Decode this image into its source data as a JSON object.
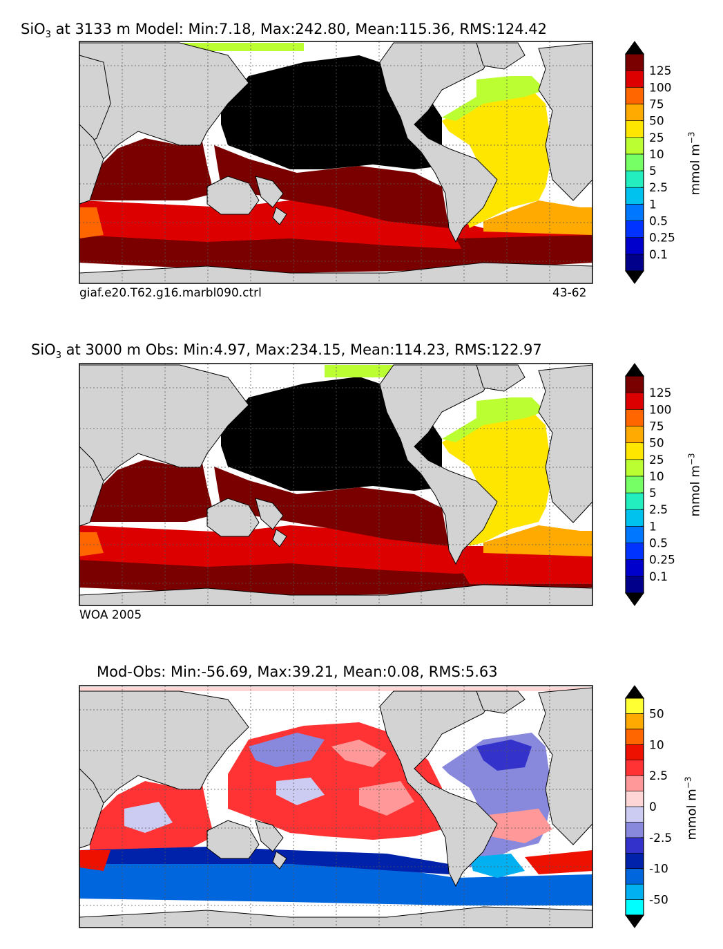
{
  "chart_data": [
    {
      "type": "heatmap",
      "title": {
        "prefix": "SiO",
        "sub": "3",
        "suffix": " at 3133 m Model: Min:7.18, Max:242.80, Mean:115.36, RMS:124.42"
      },
      "footer_left": "giaf.e20.T62.g16.marbl090.ctrl",
      "footer_right": "43-62",
      "colorbar": {
        "unit": "mmol m",
        "unit_sup": "−3",
        "levels": [
          "0.1",
          "0.25",
          "0.5",
          "1",
          "2.5",
          "5",
          "10",
          "25",
          "50",
          "75",
          "100",
          "125"
        ],
        "colors": [
          "#00008b",
          "#0000cd",
          "#0033ff",
          "#0077ff",
          "#00c2ee",
          "#22eec0",
          "#77ff66",
          "#bbff33",
          "#ffe600",
          "#ffaa00",
          "#ff6600",
          "#dd0000",
          "#7a0000"
        ],
        "extend": "both"
      },
      "stats": {
        "min": 7.18,
        "max": 242.8,
        "mean": 115.36,
        "rms": 124.42
      }
    },
    {
      "type": "heatmap",
      "title": {
        "prefix": "SiO",
        "sub": "3",
        "suffix": " at 3000 m Obs: Min:4.97, Max:234.15, Mean:114.23, RMS:122.97"
      },
      "footer_left": "WOA 2005",
      "footer_right": "",
      "colorbar": {
        "unit": "mmol m",
        "unit_sup": "−3",
        "levels": [
          "0.1",
          "0.25",
          "0.5",
          "1",
          "2.5",
          "5",
          "10",
          "25",
          "50",
          "75",
          "100",
          "125"
        ],
        "colors": [
          "#00008b",
          "#0000cd",
          "#0033ff",
          "#0077ff",
          "#00c2ee",
          "#22eec0",
          "#77ff66",
          "#bbff33",
          "#ffe600",
          "#ffaa00",
          "#ff6600",
          "#dd0000",
          "#7a0000"
        ],
        "extend": "both"
      },
      "stats": {
        "min": 4.97,
        "max": 234.15,
        "mean": 114.23,
        "rms": 122.97
      }
    },
    {
      "type": "heatmap",
      "title": {
        "prefix": "",
        "sub": "",
        "suffix": "Mod-Obs: Min:-56.69, Max:39.21, Mean:0.08, RMS:5.63"
      },
      "footer_left": "",
      "footer_right": "",
      "colorbar": {
        "unit": "mmol m",
        "unit_sup": "−3",
        "tick_labels": [
          "-50",
          "-10",
          "-2.5",
          "0",
          "2.5",
          "10",
          "50"
        ],
        "colors": [
          "#00ffff",
          "#00b0f0",
          "#0066dd",
          "#0022aa",
          "#3333cc",
          "#8888dd",
          "#ccccf2",
          "#ffd6d6",
          "#ff9999",
          "#ff3333",
          "#ee1100",
          "#ff6600",
          "#ffaa00",
          "#ffff33"
        ],
        "extend": "both"
      },
      "stats": {
        "min": -56.69,
        "max": 39.21,
        "mean": 0.08,
        "rms": 5.63
      }
    }
  ]
}
